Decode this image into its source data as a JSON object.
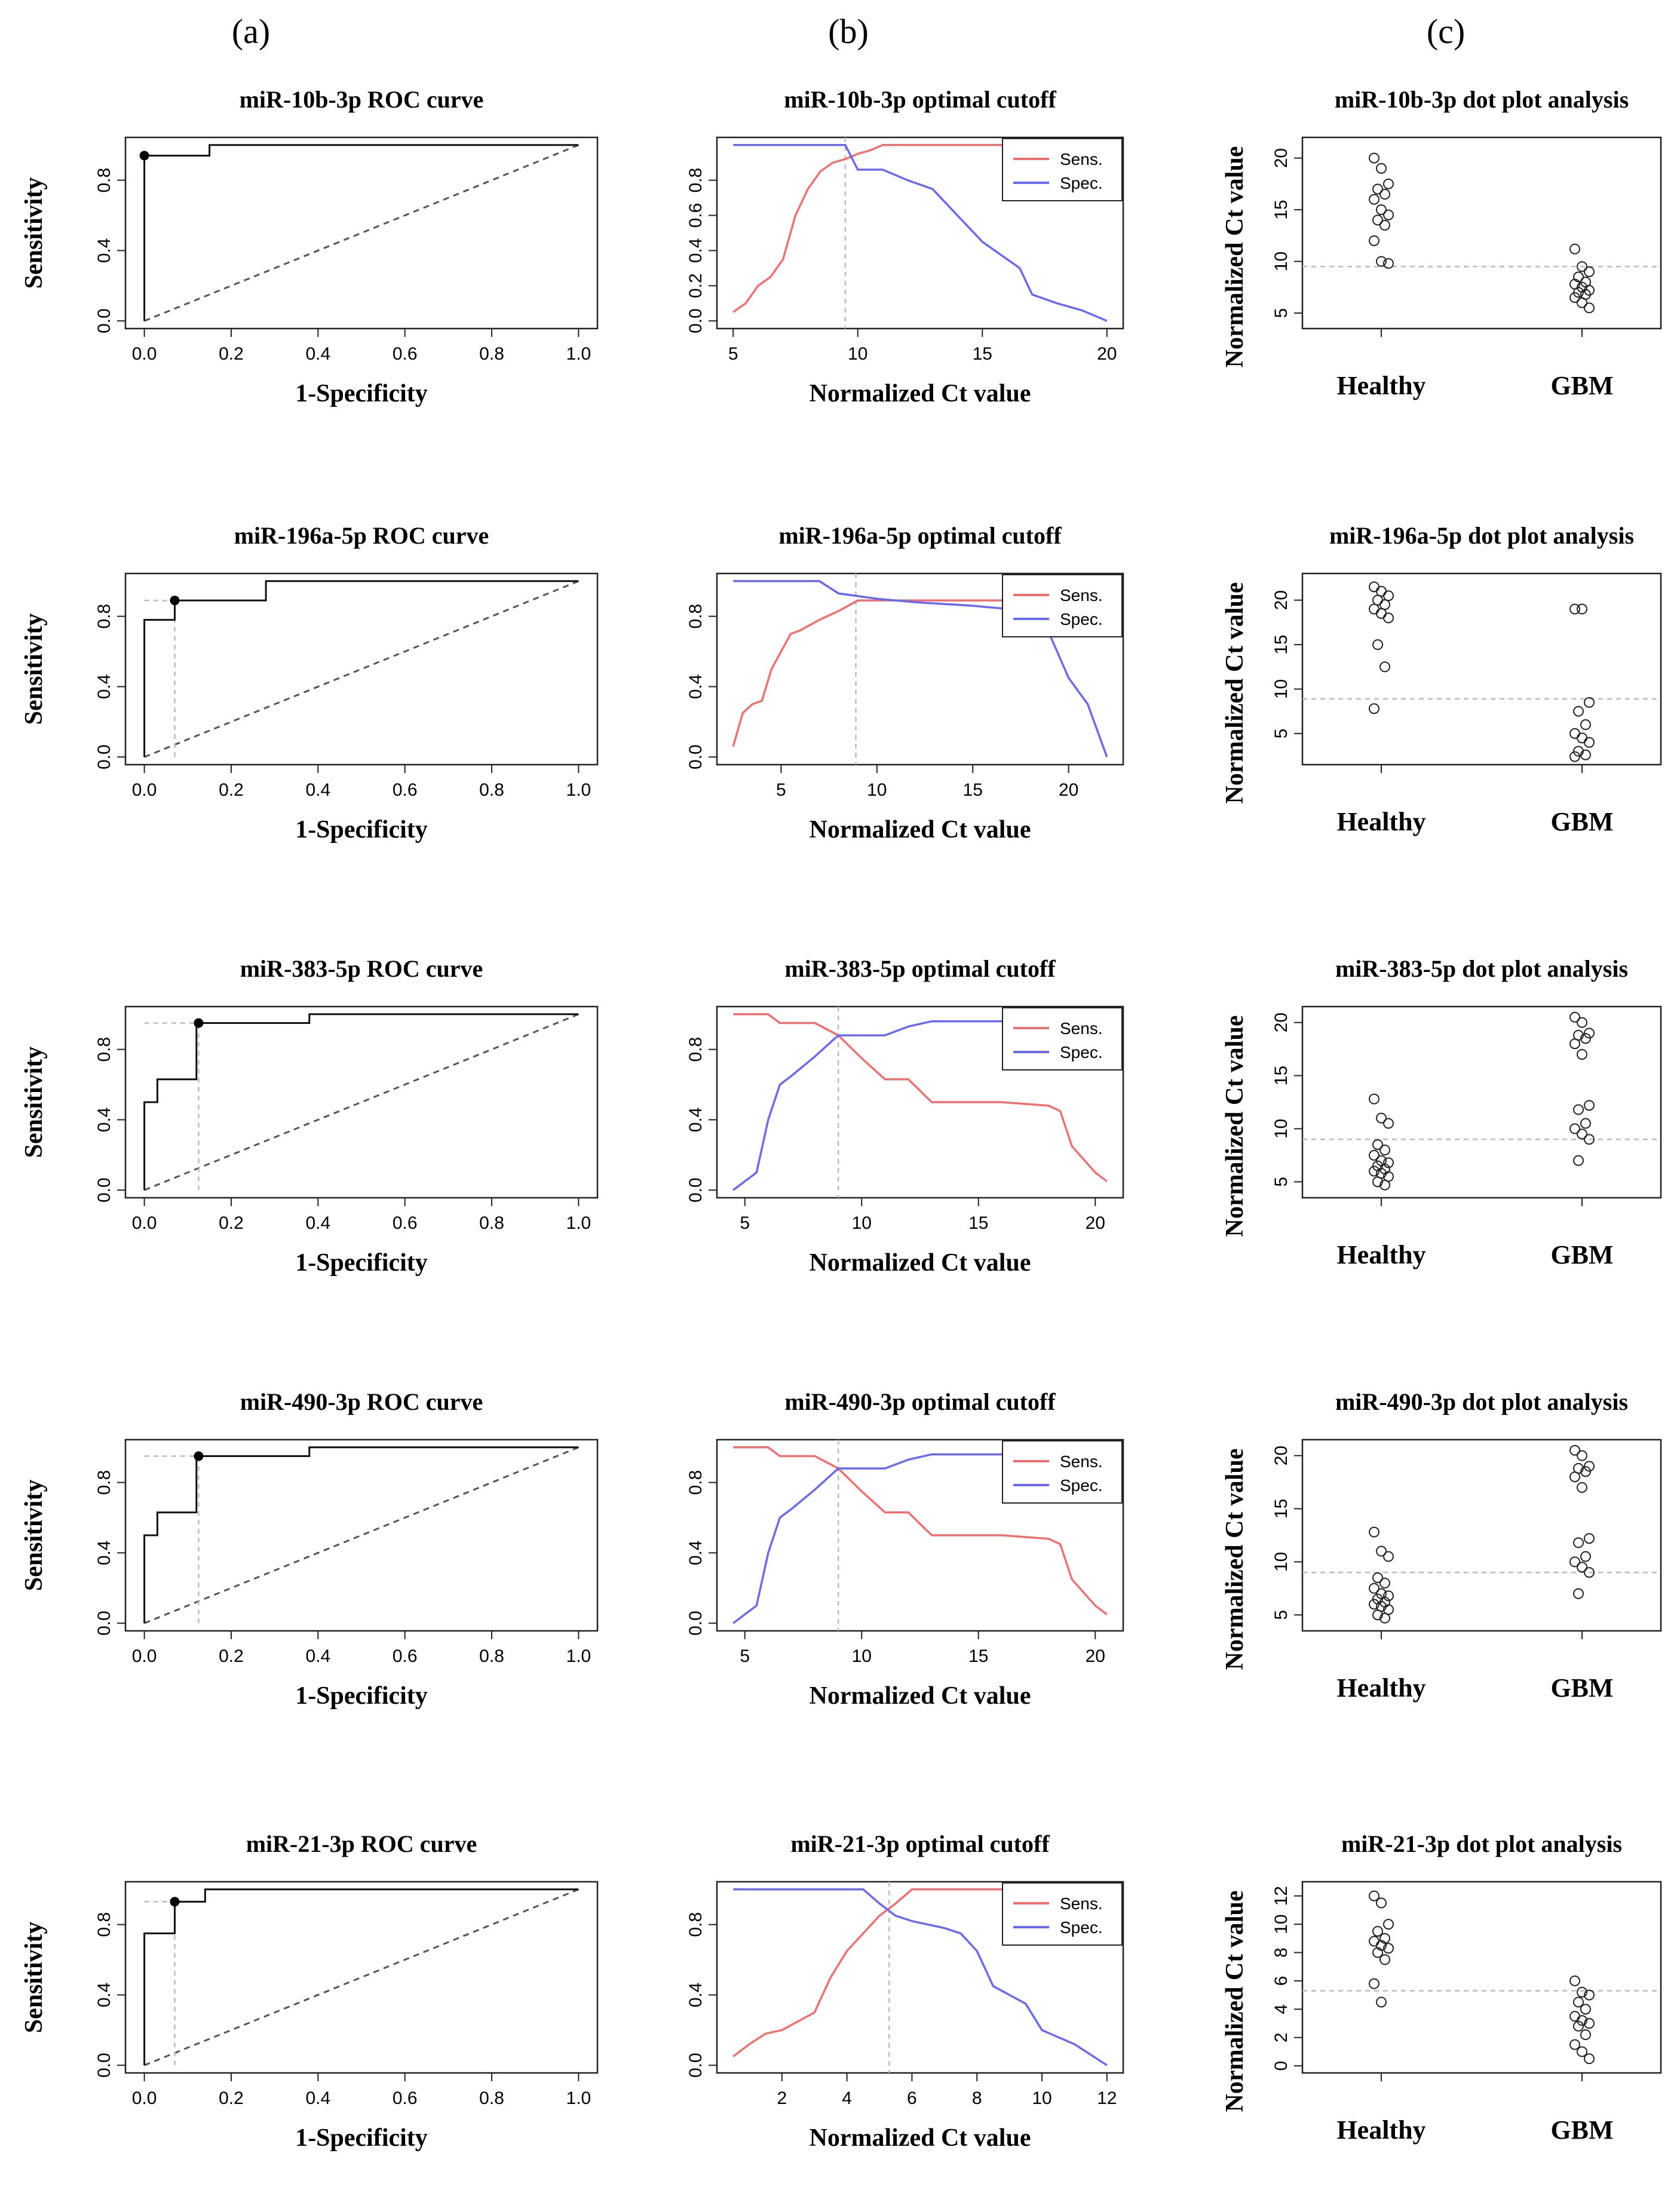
{
  "columns": [
    "(a)",
    "(b)",
    "(c)"
  ],
  "legend": {
    "sens": "Sens.",
    "spec": "Spec."
  },
  "colors": {
    "sens": "#f07070",
    "spec": "#6a6af0",
    "line": "#111111",
    "ref": "#555555",
    "guide": "#bbbbbb"
  },
  "chart_data": [
    {
      "type": "line",
      "panel": "roc",
      "title": "miR-10b-3p ROC curve",
      "xlabel": "1-Specificity",
      "ylabel": "Sensitivity",
      "xticks": [
        "0.0",
        "0.2",
        "0.4",
        "0.6",
        "0.8",
        "1.0"
      ],
      "yticks": [
        "0.0",
        "0.4",
        "0.8"
      ],
      "xlim": [
        0,
        1
      ],
      "ylim": [
        0,
        1
      ],
      "x": [
        0,
        0,
        0.15,
        0.15,
        1
      ],
      "y": [
        0,
        0.94,
        0.94,
        1,
        1
      ],
      "optimal": [
        0,
        0.94
      ]
    },
    {
      "type": "line",
      "panel": "cutoff",
      "title": "miR-10b-3p optimal cutoff",
      "xlabel": "Normalized Ct value",
      "xticks": [
        "5",
        "10",
        "15",
        "20"
      ],
      "yticks": [
        "0.0",
        "0.2",
        "0.4",
        "0.6",
        "0.8"
      ],
      "xlim": [
        5,
        20
      ],
      "ylim": [
        0,
        1
      ],
      "cutoff": 9.5,
      "series": [
        {
          "name": "Sens.",
          "x": [
            5,
            5.5,
            6,
            6.5,
            7,
            7.5,
            8,
            8.5,
            9,
            9.5,
            10,
            10.5,
            11,
            12,
            20
          ],
          "y": [
            0.05,
            0.1,
            0.2,
            0.25,
            0.35,
            0.6,
            0.75,
            0.85,
            0.9,
            0.92,
            0.95,
            0.97,
            1,
            1,
            1
          ]
        },
        {
          "name": "Spec.",
          "x": [
            5,
            9.5,
            10,
            11,
            12,
            13,
            14,
            15,
            15.5,
            16,
            16.5,
            17,
            18,
            19,
            20
          ],
          "y": [
            1,
            1,
            0.86,
            0.86,
            0.8,
            0.75,
            0.6,
            0.45,
            0.4,
            0.35,
            0.3,
            0.15,
            0.1,
            0.06,
            0
          ]
        }
      ]
    },
    {
      "type": "scatter",
      "panel": "dot",
      "title": "miR-10b-3p dot plot analysis",
      "ylabel": "Normalized Ct value",
      "categories": [
        "Healthy",
        "GBM"
      ],
      "yticks": [
        "5",
        "10",
        "15",
        "20"
      ],
      "ylim": [
        3.5,
        22
      ],
      "cutoff": 9.5,
      "series": [
        {
          "name": "Healthy",
          "values": [
            20,
            19,
            17.5,
            17,
            16.5,
            16,
            15,
            14.5,
            14,
            13.5,
            12,
            10,
            9.8
          ]
        },
        {
          "name": "GBM",
          "values": [
            11.2,
            9.5,
            9,
            8.5,
            8,
            7.8,
            7.5,
            7.2,
            7,
            6.8,
            6.5,
            6,
            5.5
          ]
        }
      ]
    },
    {
      "type": "line",
      "panel": "roc",
      "title": "miR-196a-5p ROC curve",
      "xlabel": "1-Specificity",
      "ylabel": "Sensitivity",
      "xticks": [
        "0.0",
        "0.2",
        "0.4",
        "0.6",
        "0.8",
        "1.0"
      ],
      "yticks": [
        "0.0",
        "0.4",
        "0.8"
      ],
      "xlim": [
        0,
        1
      ],
      "ylim": [
        0,
        1
      ],
      "x": [
        0,
        0,
        0.07,
        0.07,
        0.28,
        0.28,
        1
      ],
      "y": [
        0,
        0.78,
        0.78,
        0.89,
        0.89,
        1,
        1
      ],
      "optimal": [
        0.07,
        0.89
      ]
    },
    {
      "type": "line",
      "panel": "cutoff",
      "title": "miR-196a-5p optimal cutoff",
      "xlabel": "Normalized Ct value",
      "xticks": [
        "5",
        "10",
        "15",
        "20"
      ],
      "yticks": [
        "0.0",
        "0.4",
        "0.8"
      ],
      "xlim": [
        2.5,
        22
      ],
      "ylim": [
        0,
        1
      ],
      "cutoff": 8.9,
      "series": [
        {
          "name": "Sens.",
          "x": [
            2.5,
            3,
            3.5,
            4,
            4.5,
            5,
            5.5,
            6,
            7,
            8,
            9,
            10,
            15,
            22
          ],
          "y": [
            0.06,
            0.25,
            0.3,
            0.32,
            0.5,
            0.6,
            0.7,
            0.72,
            0.78,
            0.83,
            0.89,
            0.89,
            0.89,
            0.89
          ]
        },
        {
          "name": "Spec.",
          "x": [
            2.5,
            7,
            8,
            10,
            12,
            15,
            17,
            18,
            19,
            20,
            21,
            22
          ],
          "y": [
            1,
            1,
            0.93,
            0.9,
            0.88,
            0.86,
            0.84,
            0.8,
            0.7,
            0.45,
            0.3,
            0
          ]
        }
      ]
    },
    {
      "type": "scatter",
      "panel": "dot",
      "title": "miR-196a-5p dot plot analysis",
      "ylabel": "Normalized Ct value",
      "categories": [
        "Healthy",
        "GBM"
      ],
      "yticks": [
        "5",
        "10",
        "15",
        "20"
      ],
      "ylim": [
        1.5,
        23
      ],
      "cutoff": 8.9,
      "series": [
        {
          "name": "Healthy",
          "values": [
            21.5,
            21,
            20.5,
            20,
            19.5,
            19,
            18.5,
            18,
            15,
            12.5,
            7.8
          ]
        },
        {
          "name": "GBM",
          "values": [
            19,
            19,
            8.5,
            7.5,
            6,
            5,
            4.5,
            4,
            3,
            2.6,
            2.4
          ]
        }
      ]
    },
    {
      "type": "line",
      "panel": "roc",
      "title": "miR-383-5p ROC curve",
      "xlabel": "1-Specificity",
      "ylabel": "Sensitivity",
      "xticks": [
        "0.0",
        "0.2",
        "0.4",
        "0.6",
        "0.8",
        "1.0"
      ],
      "yticks": [
        "0.0",
        "0.4",
        "0.8"
      ],
      "xlim": [
        0,
        1
      ],
      "ylim": [
        0,
        1
      ],
      "x": [
        0,
        0,
        0.03,
        0.03,
        0.06,
        0.06,
        0.12,
        0.12,
        0.38,
        0.38,
        1
      ],
      "y": [
        0,
        0.5,
        0.5,
        0.63,
        0.63,
        0.63,
        0.63,
        0.95,
        0.95,
        1,
        1
      ],
      "optimal": [
        0.125,
        0.95
      ]
    },
    {
      "type": "line",
      "panel": "cutoff",
      "title": "miR-383-5p optimal cutoff",
      "xlabel": "Normalized Ct value",
      "xticks": [
        "5",
        "10",
        "15",
        "20"
      ],
      "yticks": [
        "0.0",
        "0.4",
        "0.8"
      ],
      "xlim": [
        4.5,
        20.5
      ],
      "ylim": [
        0,
        1
      ],
      "cutoff": 9,
      "series": [
        {
          "name": "Sens.",
          "x": [
            4.5,
            6,
            6.5,
            8,
            9,
            10,
            11,
            12,
            13,
            16,
            18,
            18.5,
            19,
            20,
            20.5
          ],
          "y": [
            1,
            1,
            0.95,
            0.95,
            0.88,
            0.75,
            0.63,
            0.63,
            0.5,
            0.5,
            0.48,
            0.45,
            0.25,
            0.1,
            0.05
          ]
        },
        {
          "name": "Spec.",
          "x": [
            4.5,
            5,
            5.5,
            6,
            6.5,
            7,
            8,
            9,
            10,
            11,
            12,
            13,
            20.5
          ],
          "y": [
            0,
            0.05,
            0.1,
            0.4,
            0.6,
            0.65,
            0.76,
            0.88,
            0.88,
            0.88,
            0.93,
            0.96,
            0.96
          ]
        }
      ]
    },
    {
      "type": "scatter",
      "panel": "dot",
      "title": "miR-383-5p dot plot analysis",
      "ylabel": "Normalized Ct value",
      "categories": [
        "Healthy",
        "GBM"
      ],
      "yticks": [
        "5",
        "10",
        "15",
        "20"
      ],
      "ylim": [
        3.5,
        21.5
      ],
      "cutoff": 9,
      "series": [
        {
          "name": "Healthy",
          "values": [
            12.8,
            11,
            10.5,
            8.5,
            8,
            7.5,
            7,
            6.8,
            6.5,
            6.2,
            6,
            5.8,
            5.5,
            5,
            4.7
          ]
        },
        {
          "name": "GBM",
          "values": [
            20.5,
            20,
            19,
            18.8,
            18.5,
            18,
            17,
            12.2,
            11.8,
            10.5,
            10,
            9.5,
            9,
            7
          ]
        }
      ]
    },
    {
      "type": "line",
      "panel": "roc",
      "title": "miR-490-3p ROC curve",
      "xlabel": "1-Specificity",
      "ylabel": "Sensitivity",
      "xticks": [
        "0.0",
        "0.2",
        "0.4",
        "0.6",
        "0.8",
        "1.0"
      ],
      "yticks": [
        "0.0",
        "0.4",
        "0.8"
      ],
      "xlim": [
        0,
        1
      ],
      "ylim": [
        0,
        1
      ],
      "x": [
        0,
        0,
        0.03,
        0.03,
        0.06,
        0.06,
        0.12,
        0.12,
        0.38,
        0.38,
        1
      ],
      "y": [
        0,
        0.5,
        0.5,
        0.63,
        0.63,
        0.63,
        0.63,
        0.95,
        0.95,
        1,
        1
      ],
      "optimal": [
        0.125,
        0.95
      ]
    },
    {
      "type": "line",
      "panel": "cutoff",
      "title": "miR-490-3p optimal cutoff",
      "xlabel": "Normalized Ct value",
      "xticks": [
        "5",
        "10",
        "15",
        "20"
      ],
      "yticks": [
        "0.0",
        "0.4",
        "0.8"
      ],
      "xlim": [
        4.5,
        20.5
      ],
      "ylim": [
        0,
        1
      ],
      "cutoff": 9,
      "series": [
        {
          "name": "Sens.",
          "x": [
            4.5,
            6,
            6.5,
            8,
            9,
            10,
            11,
            12,
            13,
            16,
            18,
            18.5,
            19,
            20,
            20.5
          ],
          "y": [
            1,
            1,
            0.95,
            0.95,
            0.88,
            0.75,
            0.63,
            0.63,
            0.5,
            0.5,
            0.48,
            0.45,
            0.25,
            0.1,
            0.05
          ]
        },
        {
          "name": "Spec.",
          "x": [
            4.5,
            5,
            5.5,
            6,
            6.5,
            7,
            8,
            9,
            10,
            11,
            12,
            13,
            20.5
          ],
          "y": [
            0,
            0.05,
            0.1,
            0.4,
            0.6,
            0.65,
            0.76,
            0.88,
            0.88,
            0.88,
            0.93,
            0.96,
            0.96
          ]
        }
      ]
    },
    {
      "type": "scatter",
      "panel": "dot",
      "title": "miR-490-3p dot plot analysis",
      "ylabel": "Normalized Ct value",
      "categories": [
        "Healthy",
        "GBM"
      ],
      "yticks": [
        "5",
        "10",
        "15",
        "20"
      ],
      "ylim": [
        3.5,
        21.5
      ],
      "cutoff": 9,
      "series": [
        {
          "name": "Healthy",
          "values": [
            12.8,
            11,
            10.5,
            8.5,
            8,
            7.5,
            7,
            6.8,
            6.5,
            6.2,
            6,
            5.8,
            5.5,
            5,
            4.7
          ]
        },
        {
          "name": "GBM",
          "values": [
            20.5,
            20,
            19,
            18.8,
            18.5,
            18,
            17,
            12.2,
            11.8,
            10.5,
            10,
            9.5,
            9,
            7
          ]
        }
      ]
    },
    {
      "type": "line",
      "panel": "roc",
      "title": "miR-21-3p ROC curve",
      "xlabel": "1-Specificity",
      "ylabel": "Sensitivity",
      "xticks": [
        "0.0",
        "0.2",
        "0.4",
        "0.6",
        "0.8",
        "1.0"
      ],
      "yticks": [
        "0.0",
        "0.4",
        "0.8"
      ],
      "xlim": [
        0,
        1
      ],
      "ylim": [
        0,
        1
      ],
      "x": [
        0,
        0,
        0.07,
        0.07,
        0.14,
        0.14,
        1
      ],
      "y": [
        0,
        0.75,
        0.75,
        0.93,
        0.93,
        1,
        1
      ],
      "optimal": [
        0.07,
        0.93
      ]
    },
    {
      "type": "line",
      "panel": "cutoff",
      "title": "miR-21-3p optimal cutoff",
      "xlabel": "Normalized Ct value",
      "xticks": [
        "2",
        "4",
        "6",
        "8",
        "10",
        "12"
      ],
      "yticks": [
        "0.0",
        "0.4",
        "0.8"
      ],
      "xlim": [
        0.5,
        12
      ],
      "ylim": [
        0,
        1
      ],
      "cutoff": 5.3,
      "series": [
        {
          "name": "Sens.",
          "x": [
            0.5,
            1,
            1.5,
            2,
            3,
            3.5,
            4,
            4.5,
            5,
            5.5,
            6,
            7,
            12
          ],
          "y": [
            0.05,
            0.12,
            0.18,
            0.2,
            0.3,
            0.5,
            0.65,
            0.75,
            0.85,
            0.92,
            1,
            1,
            1
          ]
        },
        {
          "name": "Spec.",
          "x": [
            0.5,
            4.5,
            5,
            5.5,
            6,
            7,
            7.5,
            8,
            8.5,
            9,
            9.5,
            10,
            11,
            12
          ],
          "y": [
            1,
            1,
            0.92,
            0.85,
            0.82,
            0.78,
            0.75,
            0.65,
            0.45,
            0.4,
            0.35,
            0.2,
            0.12,
            0
          ]
        }
      ]
    },
    {
      "type": "scatter",
      "panel": "dot",
      "title": "miR-21-3p dot plot analysis",
      "ylabel": "Normalized Ct value",
      "categories": [
        "Healthy",
        "GBM"
      ],
      "yticks": [
        "0",
        "2",
        "4",
        "6",
        "8",
        "10",
        "12"
      ],
      "ylim": [
        -0.5,
        13
      ],
      "cutoff": 5.3,
      "series": [
        {
          "name": "Healthy",
          "values": [
            12,
            11.5,
            10,
            9.5,
            9,
            8.8,
            8.5,
            8.3,
            8,
            7.5,
            5.8,
            4.5
          ]
        },
        {
          "name": "GBM",
          "values": [
            6,
            5.2,
            5,
            4.5,
            4,
            3.5,
            3.2,
            3,
            2.8,
            2.2,
            1.5,
            1,
            0.5
          ]
        }
      ]
    }
  ]
}
